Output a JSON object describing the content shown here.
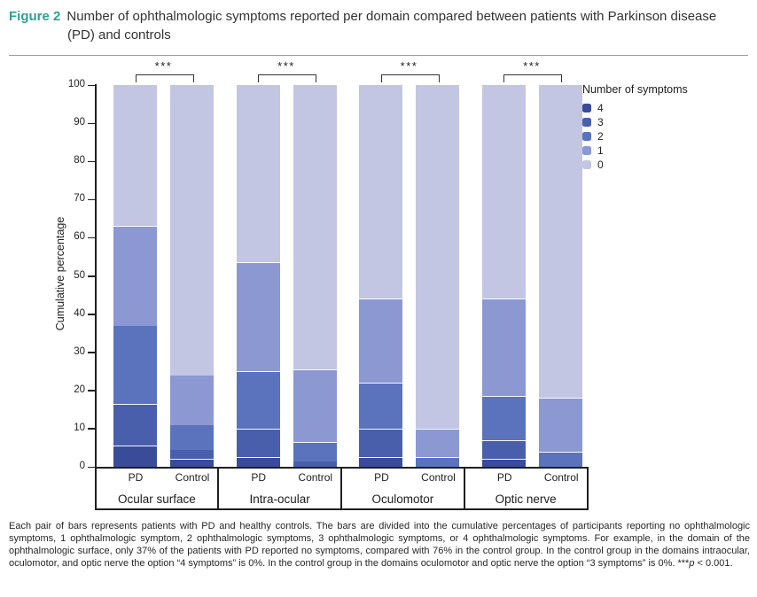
{
  "figure": {
    "label": "Figure 2",
    "title_line1": "Number of ophthalmologic symptoms reported per domain compared between patients with Parkinson disease",
    "title_line2": "(PD) and controls"
  },
  "chart_data": {
    "type": "bar",
    "subtype": "stacked-cumulative-percentage",
    "ylabel": "Cumulative percentage",
    "ylim": [
      0,
      100
    ],
    "y_ticks": [
      0,
      10,
      20,
      30,
      40,
      50,
      60,
      70,
      80,
      90,
      100
    ],
    "significance_label": "***",
    "legend": {
      "title": "Number of symptoms",
      "entries": [
        {
          "label": "4",
          "color": "#3a4c99"
        },
        {
          "label": "3",
          "color": "#4a5fab"
        },
        {
          "label": "2",
          "color": "#5a73bc"
        },
        {
          "label": "1",
          "color": "#8b98d2"
        },
        {
          "label": "0",
          "color": "#c2c6e2"
        }
      ]
    },
    "groups": [
      {
        "domain": "Ocular surface",
        "significance": "***",
        "bars": [
          {
            "label": "PD",
            "segments": [
              {
                "symptoms": "4",
                "pct": 5.5
              },
              {
                "symptoms": "3",
                "pct": 11
              },
              {
                "symptoms": "2",
                "pct": 20.5
              },
              {
                "symptoms": "1",
                "pct": 26
              },
              {
                "symptoms": "0",
                "pct": 37
              }
            ]
          },
          {
            "label": "Control",
            "segments": [
              {
                "symptoms": "4",
                "pct": 2
              },
              {
                "symptoms": "3",
                "pct": 2.5
              },
              {
                "symptoms": "2",
                "pct": 6.5
              },
              {
                "symptoms": "1",
                "pct": 13
              },
              {
                "symptoms": "0",
                "pct": 76
              }
            ]
          }
        ]
      },
      {
        "domain": "Intra-ocular",
        "significance": "***",
        "bars": [
          {
            "label": "PD",
            "segments": [
              {
                "symptoms": "4",
                "pct": 2.5
              },
              {
                "symptoms": "3",
                "pct": 7.5
              },
              {
                "symptoms": "2",
                "pct": 15
              },
              {
                "symptoms": "1",
                "pct": 28.5
              },
              {
                "symptoms": "0",
                "pct": 46.5
              }
            ]
          },
          {
            "label": "Control",
            "segments": [
              {
                "symptoms": "3",
                "pct": 1.5
              },
              {
                "symptoms": "2",
                "pct": 5
              },
              {
                "symptoms": "1",
                "pct": 19
              },
              {
                "symptoms": "0",
                "pct": 74.5
              }
            ]
          }
        ]
      },
      {
        "domain": "Oculomotor",
        "significance": "***",
        "bars": [
          {
            "label": "PD",
            "segments": [
              {
                "symptoms": "4",
                "pct": 2.5
              },
              {
                "symptoms": "3",
                "pct": 7.5
              },
              {
                "symptoms": "2",
                "pct": 12
              },
              {
                "symptoms": "1",
                "pct": 22
              },
              {
                "symptoms": "0",
                "pct": 56
              }
            ]
          },
          {
            "label": "Control",
            "segments": [
              {
                "symptoms": "2",
                "pct": 2.5
              },
              {
                "symptoms": "1",
                "pct": 7.5
              },
              {
                "symptoms": "0",
                "pct": 90
              }
            ]
          }
        ]
      },
      {
        "domain": "Optic nerve",
        "significance": "***",
        "bars": [
          {
            "label": "PD",
            "segments": [
              {
                "symptoms": "4",
                "pct": 2
              },
              {
                "symptoms": "3",
                "pct": 5
              },
              {
                "symptoms": "2",
                "pct": 11.5
              },
              {
                "symptoms": "1",
                "pct": 25.5
              },
              {
                "symptoms": "0",
                "pct": 56
              }
            ]
          },
          {
            "label": "Control",
            "segments": [
              {
                "symptoms": "2",
                "pct": 4
              },
              {
                "symptoms": "1",
                "pct": 14
              },
              {
                "symptoms": "0",
                "pct": 82
              }
            ]
          }
        ]
      }
    ]
  },
  "caption": {
    "text": "Each pair of bars represents patients with PD and healthy controls. The bars are divided into the cumulative percentages of participants reporting no ophthalmologic symptoms, 1 ophthalmologic symptom, 2 ophthalmologic symptoms, 3 ophthalmologic symptoms, or 4 ophthalmologic symptoms. For example, in the domain of the ophthalmologic surface, only 37% of the patients with PD reported no symptoms, compared with 76% in the control group. In the control group in the domains intraocular, oculomotor, and optic nerve the option “4 symptoms” is 0%. In the control group in the domains oculomotor and optic nerve the option “3 symptoms” is 0%. ",
    "sig_stars": "***",
    "sig_p": "p",
    "sig_rest": " < 0.001."
  }
}
